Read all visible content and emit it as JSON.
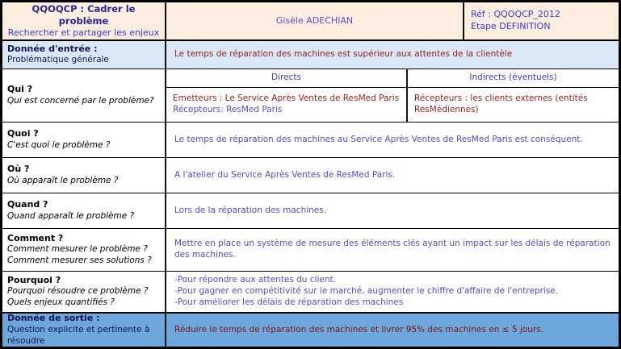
{
  "colors": {
    "header_bg": "#fceede",
    "input_row_bg": "#d8e8f6",
    "output_row_bg": "#6da7db",
    "title_navy": "#26279c",
    "link_blue": "#3a3ad0",
    "author_purple": "#6b46c8",
    "answer_red": "#9b1b1b",
    "answer_blue_violet": "#4d4dd0",
    "border_black": "#000000"
  },
  "header": {
    "title": "QQOQCP : Cadrer le problème",
    "subtitle": "Rechercher et partager les enjeux",
    "author": "Gisèle ADECHIAN",
    "reference": "Réf : QQOQCP_2012",
    "stage": "Etape DEFINITION"
  },
  "input_row": {
    "label": "Donnée d'entrée :",
    "sublabel": "Problématique générale",
    "answer": "Le temps de réparation des machines est supérieur aux attentes de la clientèle"
  },
  "qui": {
    "label": "Qui ?",
    "question": "Qui est concerné par le problème?",
    "directs_header": "Directs",
    "indirects_header": "Indirects (éventuels)",
    "directs_line1": "Emetteurs : Le Service Après Ventes de ResMed Paris",
    "directs_line2": "Récepteurs: ResMed Paris",
    "indirects_answer": "Récepteurs : les clients externes (entités ResMédiennes)"
  },
  "quoi": {
    "label": "Quoi ?",
    "question": "C'est quoi le problème ?",
    "answer": "Le temps de réparation des machines au Service Après Ventes de ResMed Paris est conséquent."
  },
  "ou": {
    "label": "Où ?",
    "question": "Où apparaît le problème ?",
    "answer": "A l'atelier du Service Après Ventes de ResMed Paris."
  },
  "quand": {
    "label": "Quand ?",
    "question": "Quand apparaît le problème ?",
    "answer": "Lors de la réparation des machines."
  },
  "comment": {
    "label": "Comment ?",
    "question1": "Comment mesurer le problème ?",
    "question2": "Comment mesurer ses solutions ?",
    "answer": "Mettre en place un système de mesure des éléments clés ayant un impact sur les délais de réparation des machines."
  },
  "pourquoi": {
    "label": "Pourquoi ?",
    "question1": "Pourquoi résoudre ce problème ?",
    "question2": "Quels enjeux quantifiés ?",
    "answers": [
      "-Pour répondre aux attentes du client.",
      "-Pour gagner en compétitivité sur le marché, augmenter le chiffre d'affaire de l'entreprise.",
      "-Pour améliorer les délais de réparation des machines"
    ]
  },
  "output_row": {
    "label": "Donnée de sortie :",
    "sublabel": "Question explicite et pertinente à résoudre",
    "answer": "Réduire le temps de réparation des machines et livrer 95% des machines en ≤ 5 jours."
  }
}
